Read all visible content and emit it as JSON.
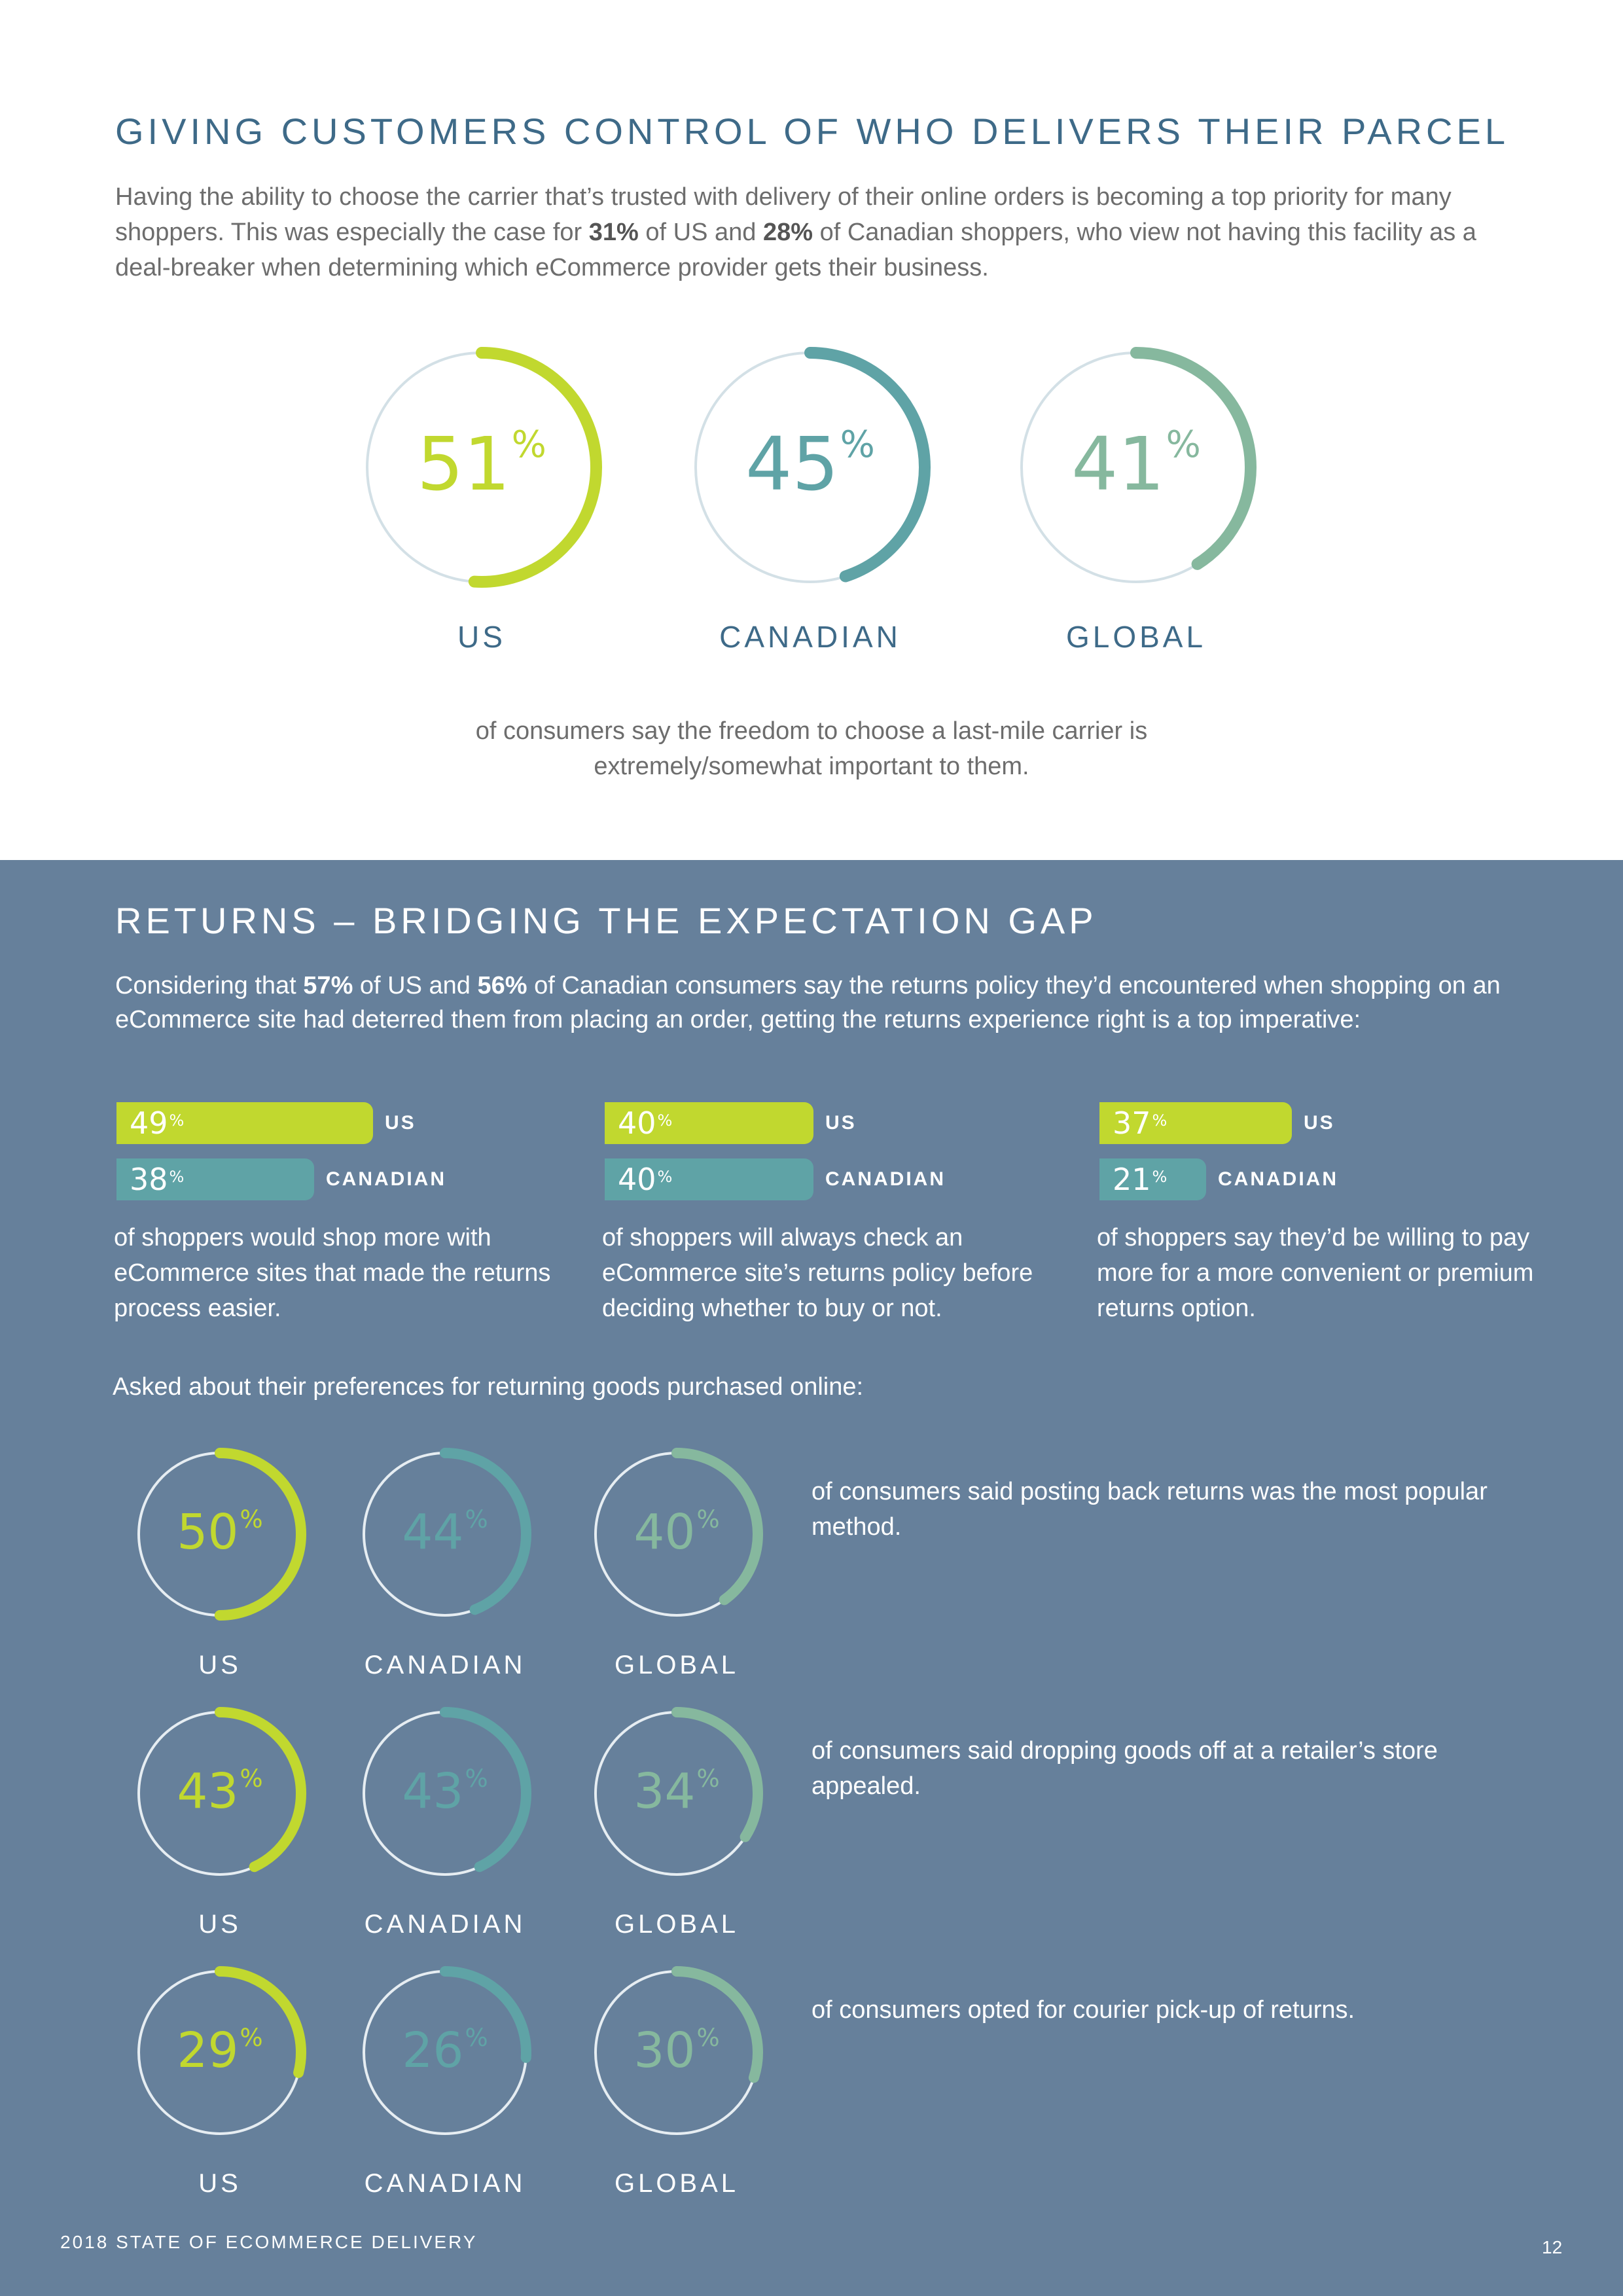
{
  "section1": {
    "title": "GIVING CUSTOMERS CONTROL OF WHO DELIVERS THEIR PARCEL",
    "intro_a": "Having the ability to choose the carrier that’s trusted with delivery of their online orders is becoming a top priority for many shoppers. This was especially the case for ",
    "intro_b": "31%",
    "intro_c": " of US and ",
    "intro_d": "28%",
    "intro_e": " of Canadian shoppers, who view not having this facility as a deal-breaker when determining which eCommerce provider gets their business.",
    "rings": [
      {
        "value": "51",
        "pct": 51,
        "label": "US",
        "color": "#c1d82f"
      },
      {
        "value": "45",
        "pct": 45,
        "label": "CANADIAN",
        "color": "#5fa3a6"
      },
      {
        "value": "41",
        "pct": 41,
        "label": "GLOBAL",
        "color": "#86b89e"
      }
    ],
    "percent_sign": "%",
    "caption": "of consumers say the freedom to choose a last-mile carrier is extremely/somewhat important to them."
  },
  "section2": {
    "title": "RETURNS – BRIDGING THE EXPECTATION GAP",
    "intro_a": "Considering that ",
    "intro_b": "57%",
    "intro_c": " of US and ",
    "intro_d": "56%",
    "intro_e": " of Canadian consumers say the returns policy they’d encountered when shopping on an eCommerce site had deterred them from placing an order, getting the returns experience right is a top imperative:",
    "bar_groups": [
      {
        "bars": [
          {
            "value": "49",
            "pct": 49,
            "label": "US",
            "color": "#c1d82f"
          },
          {
            "value": "38",
            "pct": 38,
            "label": "CANADIAN",
            "color": "#5fa3a6"
          }
        ],
        "description": "of shoppers would shop more with eCommerce sites that made the returns process easier."
      },
      {
        "bars": [
          {
            "value": "40",
            "pct": 40,
            "label": "US",
            "color": "#c1d82f"
          },
          {
            "value": "40",
            "pct": 40,
            "label": "CANADIAN",
            "color": "#5fa3a6"
          }
        ],
        "description": "of shoppers will always check an eCommerce site’s returns policy before deciding whether to buy or not."
      },
      {
        "bars": [
          {
            "value": "37",
            "pct": 37,
            "label": "US",
            "color": "#c1d82f"
          },
          {
            "value": "21",
            "pct": 21,
            "label": "CANADIAN",
            "color": "#5fa3a6"
          }
        ],
        "description": "of shoppers say they’d be willing to pay more for a more convenient or premium returns option."
      }
    ],
    "asked": "Asked about their preferences for returning goods purchased online:",
    "ring_rows": [
      {
        "text": "of consumers said posting back returns was the most popular method.",
        "rings": [
          {
            "value": "50",
            "pct": 50,
            "label": "US",
            "color": "#c1d82f"
          },
          {
            "value": "44",
            "pct": 44,
            "label": "CANADIAN",
            "color": "#5fa3a6"
          },
          {
            "value": "40",
            "pct": 40,
            "label": "GLOBAL",
            "color": "#86b89e"
          }
        ]
      },
      {
        "text": "of consumers said dropping goods off at a retailer’s store appealed.",
        "rings": [
          {
            "value": "43",
            "pct": 43,
            "label": "US",
            "color": "#c1d82f"
          },
          {
            "value": "43",
            "pct": 43,
            "label": "CANADIAN",
            "color": "#5fa3a6"
          },
          {
            "value": "34",
            "pct": 34,
            "label": "GLOBAL",
            "color": "#86b89e"
          }
        ]
      },
      {
        "text": "of consumers opted for courier pick-up of returns.",
        "rings": [
          {
            "value": "29",
            "pct": 29,
            "label": "US",
            "color": "#c1d82f"
          },
          {
            "value": "26",
            "pct": 26,
            "label": "CANADIAN",
            "color": "#5fa3a6"
          },
          {
            "value": "30",
            "pct": 30,
            "label": "GLOBAL",
            "color": "#86b89e"
          }
        ]
      }
    ]
  },
  "footer": {
    "title": "2018 STATE OF ECOMMERCE DELIVERY",
    "page": "12"
  },
  "colors": {
    "heading_top": "#3e6a88",
    "bottom_bg": "#66809b",
    "ring_track_top": "#d3e0e6",
    "ring_track_bottom": "#e6edf2"
  }
}
